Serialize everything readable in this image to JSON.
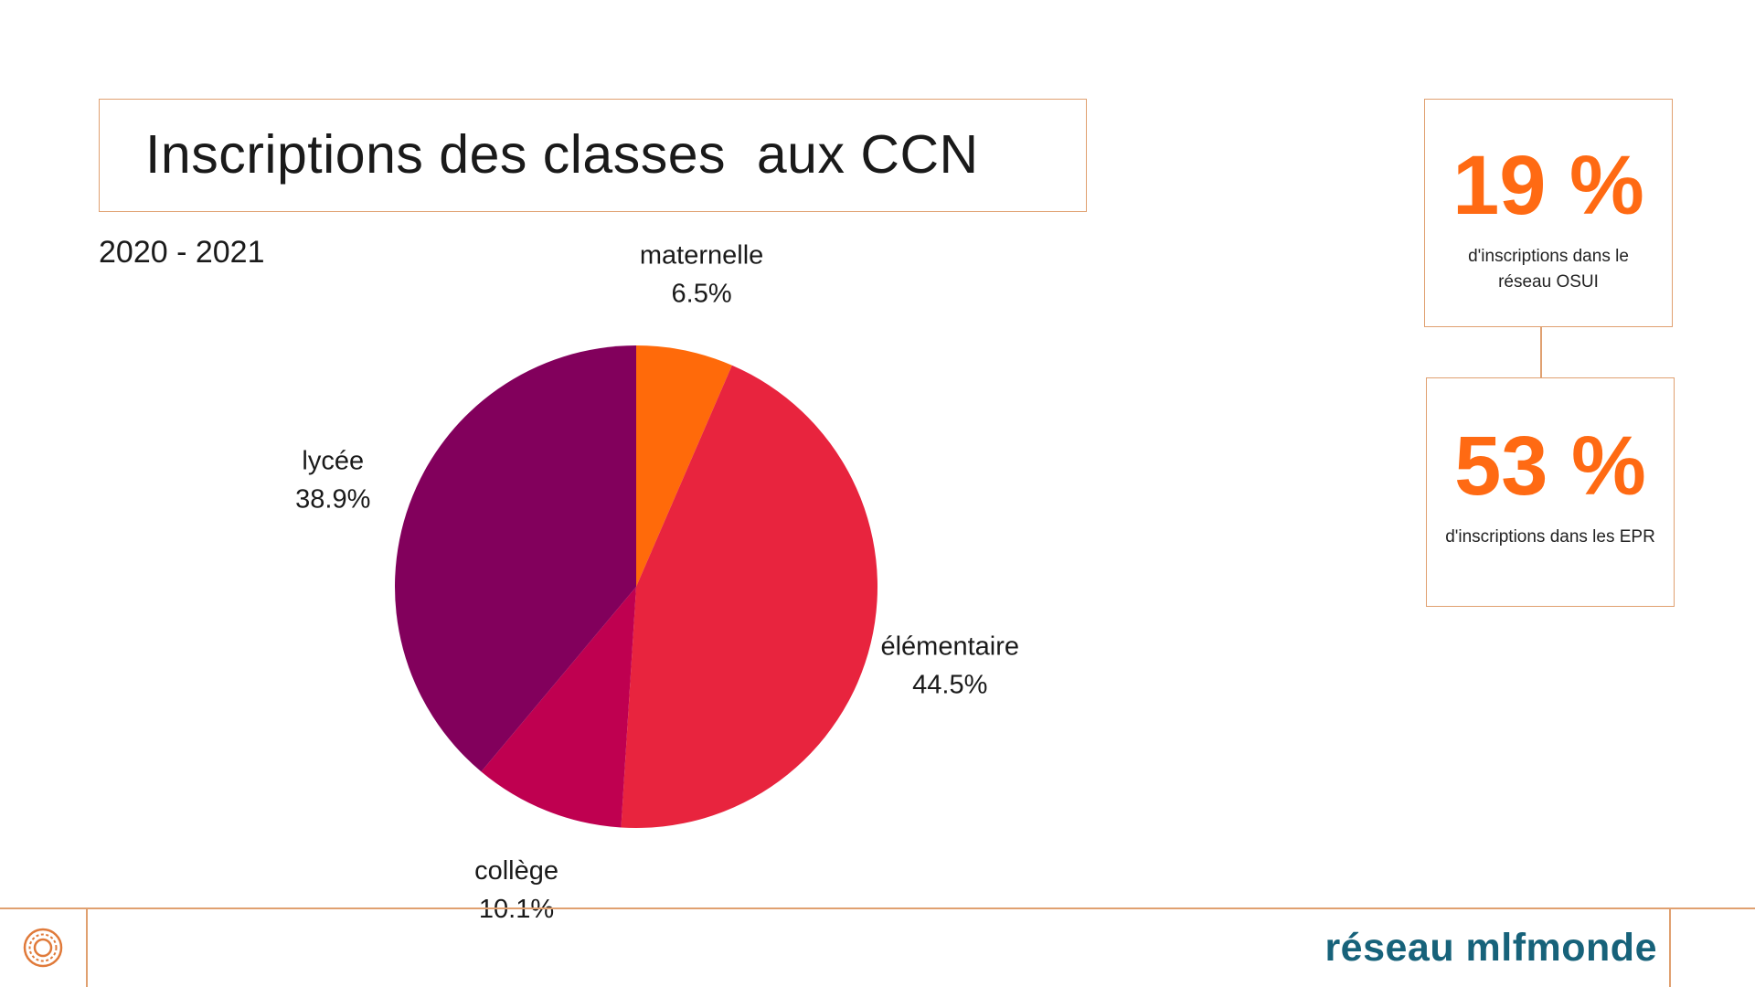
{
  "header": {
    "title": "Inscriptions des classes  aux CCN",
    "subtitle": "2020 - 2021"
  },
  "stats": [
    {
      "value": "19 %",
      "description": "d'inscriptions dans le réseau OSUI"
    },
    {
      "value": "53 %",
      "description": "d'inscriptions dans les EPR"
    }
  ],
  "footer": {
    "brand": "réseau mlfmonde",
    "emblem_icon": "sun-emblem-icon"
  },
  "colors": {
    "accent_orange": "#ff6a13",
    "border": "#e0a070",
    "brand_teal": "#17627a"
  },
  "chart_data": {
    "type": "pie",
    "title": "Inscriptions des classes  aux CCN",
    "subtitle": "2020 - 2021",
    "categories": [
      "maternelle",
      "élémentaire",
      "collège",
      "lycée"
    ],
    "values": [
      6.5,
      44.5,
      10.1,
      38.9
    ],
    "value_labels": [
      "6.5%",
      "44.5%",
      "10.1%",
      "38.9%"
    ],
    "colors": [
      "#ff6a0a",
      "#e8243e",
      "#bf0050",
      "#82005c"
    ],
    "start_angle": "12 o'clock",
    "direction": "clockwise",
    "labels_outside": true
  }
}
